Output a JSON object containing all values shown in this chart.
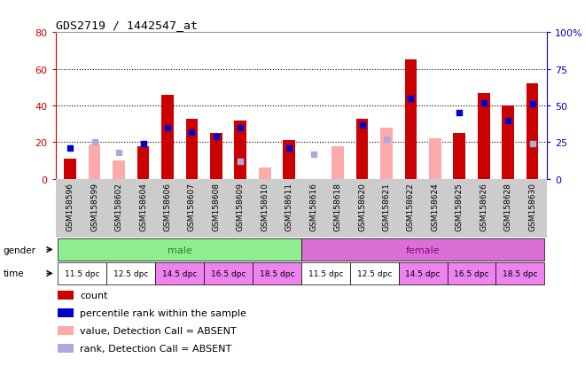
{
  "title": "GDS2719 / 1442547_at",
  "samples": [
    "GSM158596",
    "GSM158599",
    "GSM158602",
    "GSM158604",
    "GSM158606",
    "GSM158607",
    "GSM158608",
    "GSM158609",
    "GSM158610",
    "GSM158611",
    "GSM158616",
    "GSM158618",
    "GSM158620",
    "GSM158621",
    "GSM158622",
    "GSM158624",
    "GSM158625",
    "GSM158626",
    "GSM158628",
    "GSM158630"
  ],
  "count_values": [
    11,
    0,
    0,
    18,
    46,
    33,
    25,
    32,
    0,
    21,
    0,
    0,
    33,
    0,
    65,
    0,
    25,
    47,
    40,
    52
  ],
  "count_absent": [
    0,
    19,
    10,
    0,
    0,
    0,
    0,
    0,
    6,
    0,
    0,
    18,
    0,
    28,
    0,
    22,
    0,
    0,
    0,
    0
  ],
  "pct_present": [
    21,
    0,
    0,
    24,
    35,
    32,
    29,
    35,
    0,
    21,
    0,
    0,
    37,
    0,
    55,
    0,
    45,
    52,
    40,
    51
  ],
  "pct_absent": [
    0,
    25,
    18,
    0,
    0,
    0,
    0,
    12,
    0,
    0,
    17,
    0,
    0,
    27,
    0,
    0,
    0,
    0,
    0,
    24
  ],
  "ylim_left": [
    0,
    80
  ],
  "ylim_right": [
    0,
    100
  ],
  "yticks_left": [
    0,
    20,
    40,
    60,
    80
  ],
  "yticks_right": [
    0,
    25,
    50,
    75,
    100
  ],
  "ytick_right_labels": [
    "0",
    "25",
    "50",
    "75",
    "100%"
  ],
  "grid_yticks": [
    20,
    40,
    60
  ],
  "color_count": "#cc0000",
  "color_percentile": "#0000cc",
  "color_absent_value": "#ffaaaa",
  "color_absent_rank": "#aaaadd",
  "color_axis_left": "#cc0000",
  "color_axis_right": "#0000cc",
  "color_male_bg": "#90EE90",
  "color_female_bg": "#DA70D6",
  "color_male_text": "#228822",
  "color_female_text": "#880088",
  "color_xtick_bg": "#cccccc",
  "color_chart_bg": "#ffffff",
  "time_labels": [
    "11.5 dpc",
    "12.5 dpc",
    "14.5 dpc",
    "16.5 dpc",
    "18.5 dpc",
    "11.5 dpc",
    "12.5 dpc",
    "14.5 dpc",
    "16.5 dpc",
    "18.5 dpc"
  ],
  "time_colors": [
    "#ffffff",
    "#ffffff",
    "#EE82EE",
    "#EE82EE",
    "#EE82EE",
    "#ffffff",
    "#ffffff",
    "#EE82EE",
    "#EE82EE",
    "#EE82EE"
  ],
  "legend_items": [
    {
      "color": "#cc0000",
      "label": "count"
    },
    {
      "color": "#0000cc",
      "label": "percentile rank within the sample"
    },
    {
      "color": "#ffaaaa",
      "label": "value, Detection Call = ABSENT"
    },
    {
      "color": "#aaaadd",
      "label": "rank, Detection Call = ABSENT"
    }
  ]
}
